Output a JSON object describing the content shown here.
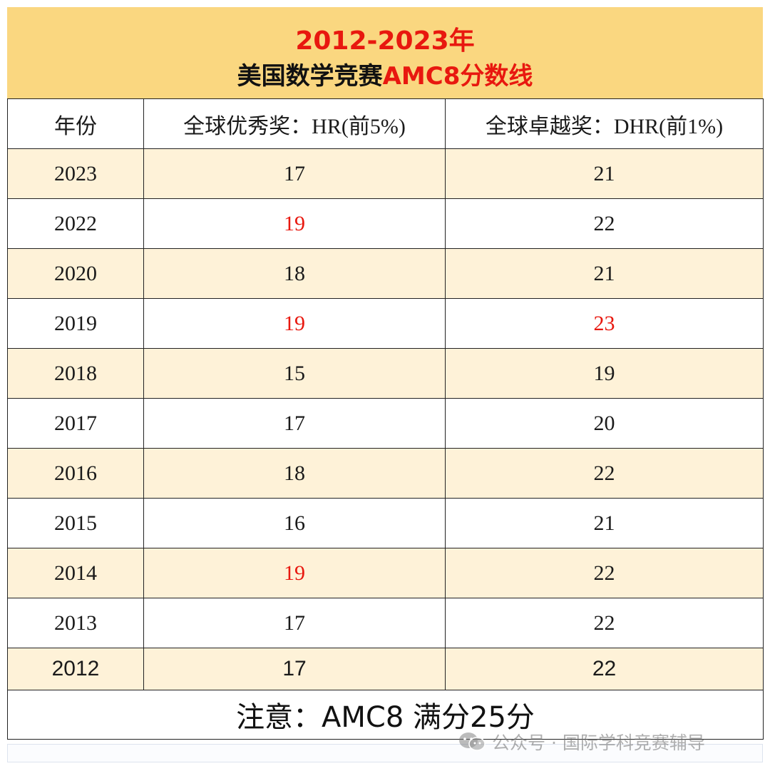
{
  "title": {
    "line1": "2012-2023年",
    "line2_prefix": "美国数学竞赛",
    "line2_accent": "AMC8分数线"
  },
  "colors": {
    "header_band": "#fad780",
    "accent_red": "#e8180f",
    "even_row": "#fef2d8"
  },
  "table": {
    "headers": [
      "年份",
      "全球优秀奖：HR(前5%)",
      "全球卓越奖：DHR(前1%)"
    ],
    "rows": [
      {
        "year": "2023",
        "hr": "17",
        "dhr": "21",
        "hr_red": false,
        "dhr_red": false
      },
      {
        "year": "2022",
        "hr": "19",
        "dhr": "22",
        "hr_red": true,
        "dhr_red": false
      },
      {
        "year": "2020",
        "hr": "18",
        "dhr": "21",
        "hr_red": false,
        "dhr_red": false
      },
      {
        "year": "2019",
        "hr": "19",
        "dhr": "23",
        "hr_red": true,
        "dhr_red": true
      },
      {
        "year": "2018",
        "hr": "15",
        "dhr": "19",
        "hr_red": false,
        "dhr_red": false
      },
      {
        "year": "2017",
        "hr": "17",
        "dhr": "20",
        "hr_red": false,
        "dhr_red": false
      },
      {
        "year": "2016",
        "hr": "18",
        "dhr": "22",
        "hr_red": false,
        "dhr_red": false
      },
      {
        "year": "2015",
        "hr": "16",
        "dhr": "21",
        "hr_red": false,
        "dhr_red": false
      },
      {
        "year": "2014",
        "hr": "19",
        "dhr": "22",
        "hr_red": true,
        "dhr_red": false
      },
      {
        "year": "2013",
        "hr": "17",
        "dhr": "22",
        "hr_red": false,
        "dhr_red": false
      },
      {
        "year": "2012",
        "hr": "17",
        "dhr": "22",
        "hr_red": false,
        "dhr_red": false
      }
    ]
  },
  "note": "注意：AMC8 满分25分",
  "watermark": {
    "icon": "wechat-icon",
    "text": "公众号 · 国际学科竞赛辅导"
  }
}
